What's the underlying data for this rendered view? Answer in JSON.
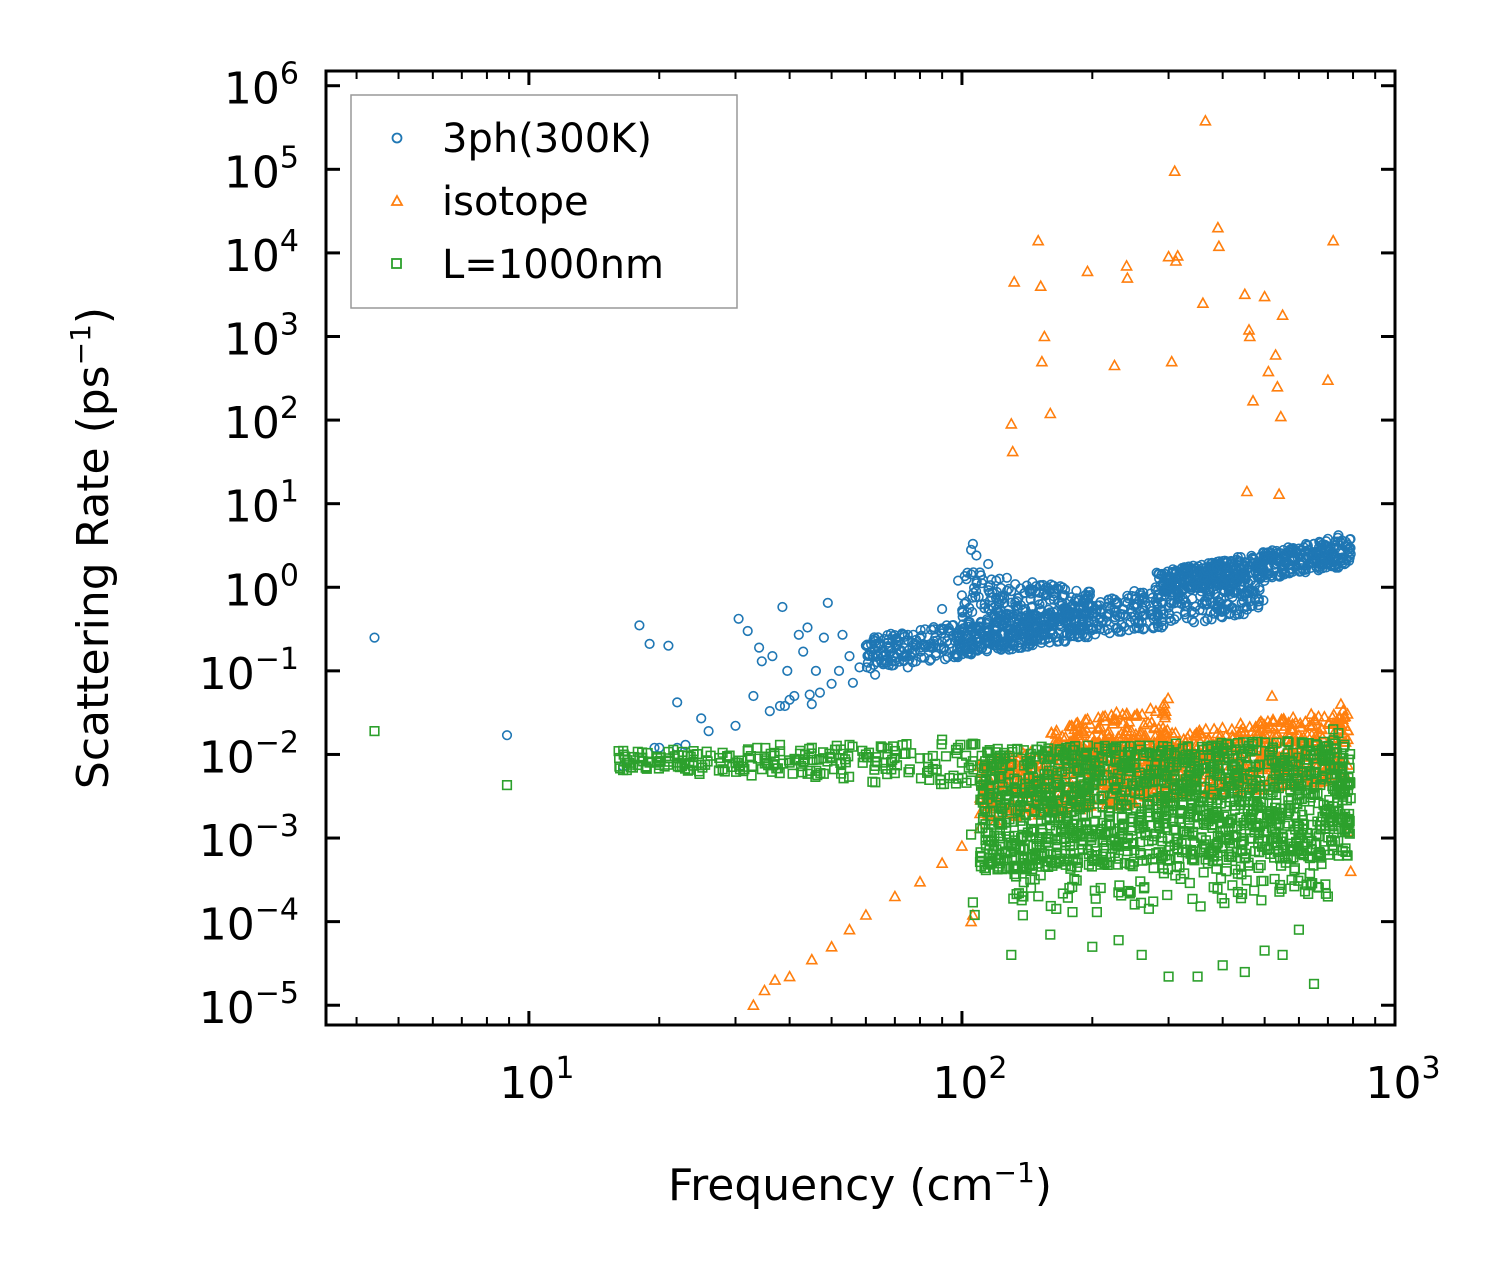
{
  "chart_data": {
    "type": "scatter",
    "scale": {
      "x": "log",
      "y": "log"
    },
    "xlabel": {
      "base": "Frequency (cm",
      "sup": "−1",
      "tail": ")"
    },
    "ylabel": {
      "base": "Scattering Rate (ps",
      "sup": "−1",
      "tail": ")"
    },
    "xlim": [
      3.4,
      1000
    ],
    "ylim": [
      5.8e-06,
      1500000
    ],
    "x_ticks": [
      {
        "value": 10,
        "base": "10",
        "exp": "1"
      },
      {
        "value": 100,
        "base": "10",
        "exp": "2"
      },
      {
        "value": 1000,
        "base": "10",
        "exp": "3"
      }
    ],
    "y_ticks": [
      {
        "value": 1e-05,
        "base": "10",
        "exp": "−5"
      },
      {
        "value": 0.0001,
        "base": "10",
        "exp": "−4"
      },
      {
        "value": 0.001,
        "base": "10",
        "exp": "−3"
      },
      {
        "value": 0.01,
        "base": "10",
        "exp": "−2"
      },
      {
        "value": 0.1,
        "base": "10",
        "exp": "−1"
      },
      {
        "value": 1,
        "base": "10",
        "exp": "0"
      },
      {
        "value": 10,
        "base": "10",
        "exp": "1"
      },
      {
        "value": 100,
        "base": "10",
        "exp": "2"
      },
      {
        "value": 1000,
        "base": "10",
        "exp": "3"
      },
      {
        "value": 10000,
        "base": "10",
        "exp": "4"
      },
      {
        "value": 100000,
        "base": "10",
        "exp": "5"
      },
      {
        "value": 1000000,
        "base": "10",
        "exp": "6"
      }
    ],
    "legend": {
      "placement": "top-left"
    },
    "series": [
      {
        "name": "3ph(300K)",
        "marker": "circle",
        "color": "#1f77b4",
        "points": [
          [
            4.4,
            0.25
          ],
          [
            8.9,
            0.017
          ],
          [
            16.5,
            0.0072
          ],
          [
            18,
            0.35
          ],
          [
            19,
            0.21
          ],
          [
            19.5,
            0.012
          ],
          [
            20,
            0.012
          ],
          [
            21,
            0.2
          ],
          [
            22,
            0.042
          ],
          [
            22,
            0.012
          ],
          [
            23,
            0.013
          ],
          [
            25,
            0.027
          ],
          [
            26,
            0.019
          ],
          [
            30,
            0.022
          ],
          [
            30.5,
            0.42
          ],
          [
            32,
            0.3
          ],
          [
            33,
            0.05
          ],
          [
            34,
            0.19
          ],
          [
            34.5,
            0.13
          ],
          [
            36,
            0.033
          ],
          [
            36.5,
            0.15
          ],
          [
            38,
            0.038
          ],
          [
            38.5,
            0.58
          ],
          [
            39,
            0.038
          ],
          [
            39.5,
            0.1
          ],
          [
            40,
            0.045
          ],
          [
            41,
            0.05
          ],
          [
            42,
            0.27
          ],
          [
            43,
            0.17
          ],
          [
            44,
            0.33
          ],
          [
            44.5,
            0.052
          ],
          [
            45,
            0.04
          ],
          [
            46,
            0.1
          ],
          [
            47,
            0.055
          ],
          [
            48,
            0.25
          ],
          [
            49,
            0.65
          ],
          [
            50,
            0.07
          ],
          [
            52,
            0.1
          ],
          [
            53,
            0.27
          ],
          [
            55,
            0.15
          ],
          [
            56,
            0.072
          ],
          [
            58,
            0.11
          ],
          [
            60,
            0.2
          ],
          [
            63,
            0.09
          ],
          [
            66,
            0.17
          ],
          [
            70,
            0.13
          ],
          [
            75,
            0.11
          ],
          [
            80,
            0.25
          ],
          [
            85,
            0.19
          ],
          [
            90,
            0.55
          ],
          [
            95,
            0.35
          ],
          [
            98,
            1.2
          ],
          [
            100,
            0.8
          ],
          [
            103,
            0.5
          ],
          [
            105,
            2.8
          ],
          [
            106,
            3.3
          ],
          [
            108,
            2.4
          ],
          [
            110,
            1.5
          ],
          [
            115,
            1.9
          ],
          [
            120,
            1.2
          ],
          [
            130,
            0.9
          ],
          [
            140,
            0.55
          ],
          [
            150,
            0.7
          ],
          [
            160,
            0.5
          ],
          [
            180,
            0.6
          ],
          [
            200,
            0.6
          ],
          [
            220,
            0.55
          ],
          [
            250,
            0.9
          ],
          [
            280,
            1.0
          ],
          [
            300,
            1.3
          ],
          [
            350,
            1.4
          ],
          [
            400,
            1.6
          ],
          [
            450,
            2.0
          ],
          [
            500,
            2.2
          ],
          [
            550,
            2.4
          ],
          [
            600,
            2.9
          ],
          [
            650,
            3.3
          ],
          [
            700,
            3.8
          ],
          [
            740,
            4.2
          ],
          [
            770,
            3.5
          ],
          [
            790,
            2.5
          ]
        ],
        "bands": [
          {
            "x": [
              60,
              500
            ],
            "y_lo": [
              0.1,
              0.5
            ],
            "y_hi": [
              0.25,
              1.5
            ],
            "count": 700
          },
          {
            "x": [
              100,
              200
            ],
            "y_lo": [
              0.15,
              0.3
            ],
            "y_hi": [
              1.6,
              0.9
            ],
            "count": 300
          },
          {
            "x": [
              280,
              790
            ],
            "y_lo": [
              0.8,
              1.8
            ],
            "y_hi": [
              1.5,
              4.2
            ],
            "count": 500
          }
        ]
      },
      {
        "name": "isotope",
        "marker": "triangle",
        "color": "#ff7f0e",
        "points": [
          [
            33,
            1e-05
          ],
          [
            35,
            1.5e-05
          ],
          [
            37,
            2e-05
          ],
          [
            40,
            2.2e-05
          ],
          [
            45,
            3.5e-05
          ],
          [
            50,
            5e-05
          ],
          [
            55,
            8e-05
          ],
          [
            60,
            0.00012
          ],
          [
            70,
            0.0002
          ],
          [
            80,
            0.0003
          ],
          [
            90,
            0.0005
          ],
          [
            100,
            0.0008
          ],
          [
            105,
            0.0001
          ],
          [
            106,
            0.00012
          ],
          [
            110,
            0.0013
          ],
          [
            130,
            90
          ],
          [
            131,
            42
          ],
          [
            132,
            4500
          ],
          [
            150,
            14000
          ],
          [
            152,
            4000
          ],
          [
            153,
            500
          ],
          [
            155,
            1000
          ],
          [
            160,
            120
          ],
          [
            195,
            6000
          ],
          [
            225,
            450
          ],
          [
            240,
            7000
          ],
          [
            241,
            5000
          ],
          [
            300,
            9000
          ],
          [
            305,
            500
          ],
          [
            310,
            95000
          ],
          [
            312,
            8000
          ],
          [
            315,
            9200
          ],
          [
            360,
            2500
          ],
          [
            365,
            380000
          ],
          [
            390,
            20000
          ],
          [
            392,
            12000
          ],
          [
            450,
            3200
          ],
          [
            455,
            14
          ],
          [
            460,
            1200
          ],
          [
            462,
            1000
          ],
          [
            470,
            170
          ],
          [
            500,
            3000
          ],
          [
            510,
            380
          ],
          [
            520,
            0.05
          ],
          [
            530,
            600
          ],
          [
            535,
            250
          ],
          [
            540,
            13
          ],
          [
            545,
            110
          ],
          [
            550,
            1800
          ],
          [
            700,
            300
          ],
          [
            720,
            14000
          ],
          [
            750,
            0.04
          ],
          [
            780,
            0.0012
          ],
          [
            790,
            0.0004
          ]
        ],
        "bands": [
          {
            "x": [
              110,
              780
            ],
            "y_lo": [
              0.0015,
              0.005
            ],
            "y_hi": [
              0.009,
              0.035
            ],
            "count": 900
          },
          {
            "x": [
              160,
              300
            ],
            "y_lo": [
              0.008,
              0.01
            ],
            "y_hi": [
              0.02,
              0.05
            ],
            "count": 150
          }
        ]
      },
      {
        "name": "L=1000nm",
        "marker": "square",
        "color": "#2ca02c",
        "points": [
          [
            4.4,
            0.019
          ],
          [
            8.9,
            0.0043
          ],
          [
            16.5,
            0.0065
          ],
          [
            18,
            0.009
          ],
          [
            19,
            0.008
          ],
          [
            20,
            0.0075
          ],
          [
            21,
            0.009
          ],
          [
            22,
            0.008
          ],
          [
            24,
            0.01
          ],
          [
            25,
            0.0075
          ],
          [
            30,
            0.008
          ],
          [
            32,
            0.011
          ],
          [
            35,
            0.009
          ],
          [
            38,
            0.013
          ],
          [
            40,
            0.008
          ],
          [
            45,
            0.012
          ],
          [
            50,
            0.009
          ],
          [
            55,
            0.013
          ],
          [
            60,
            0.01
          ],
          [
            70,
            0.011
          ],
          [
            80,
            0.009
          ],
          [
            90,
            0.015
          ],
          [
            100,
            0.008
          ],
          [
            105,
            0.0011
          ],
          [
            106,
            0.00017
          ],
          [
            107,
            0.00012
          ],
          [
            130,
            4e-05
          ],
          [
            160,
            7e-05
          ],
          [
            180,
            0.00013
          ],
          [
            200,
            5e-05
          ],
          [
            230,
            6e-05
          ],
          [
            260,
            4e-05
          ],
          [
            300,
            2.2e-05
          ],
          [
            350,
            2.2e-05
          ],
          [
            400,
            3e-05
          ],
          [
            450,
            2.5e-05
          ],
          [
            500,
            4.5e-05
          ],
          [
            550,
            4e-05
          ],
          [
            600,
            8e-05
          ],
          [
            650,
            1.8e-05
          ],
          [
            700,
            0.0002
          ],
          [
            720,
            0.02
          ],
          [
            740,
            0.018
          ],
          [
            760,
            0.009
          ],
          [
            790,
            0.003
          ]
        ],
        "bands": [
          {
            "x": [
              16,
              110
            ],
            "y_lo": [
              0.0065,
              0.004
            ],
            "y_hi": [
              0.011,
              0.014
            ],
            "count": 220
          },
          {
            "x": [
              110,
              790
            ],
            "y_lo": [
              0.0004,
              0.0006
            ],
            "y_hi": [
              0.012,
              0.015
            ],
            "count": 1500
          },
          {
            "x": [
              130,
              700
            ],
            "y_lo": [
              0.0001,
              0.0002
            ],
            "y_hi": [
              0.0006,
              0.0006
            ],
            "count": 120
          }
        ]
      }
    ]
  }
}
